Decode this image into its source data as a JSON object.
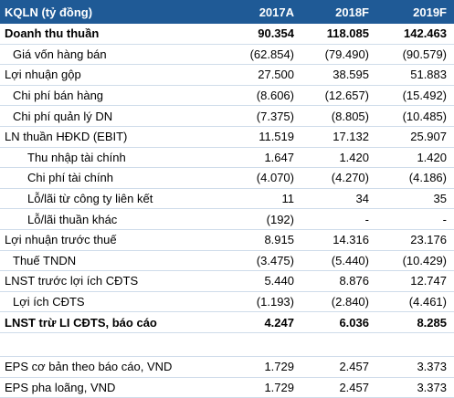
{
  "header": {
    "label": "KQLN (tỷ đồng)",
    "cols": [
      "2017A",
      "2018F",
      "2019F"
    ]
  },
  "rows": [
    {
      "label": "Doanh thu thuần",
      "v": [
        "90.354",
        "118.085",
        "142.463"
      ],
      "bold": true,
      "indent": 0
    },
    {
      "label": "Giá vốn hàng bán",
      "v": [
        "(62.854)",
        "(79.490)",
        "(90.579)"
      ],
      "bold": false,
      "indent": 1
    },
    {
      "label": "Lợi nhuận gộp",
      "v": [
        "27.500",
        "38.595",
        "51.883"
      ],
      "bold": false,
      "indent": 0
    },
    {
      "label": "Chi phí bán hàng",
      "v": [
        "(8.606)",
        "(12.657)",
        "(15.492)"
      ],
      "bold": false,
      "indent": 1
    },
    {
      "label": "Chi phí quản lý DN",
      "v": [
        "(7.375)",
        "(8.805)",
        "(10.485)"
      ],
      "bold": false,
      "indent": 1
    },
    {
      "label": "LN thuần HĐKD (EBIT)",
      "v": [
        "11.519",
        "17.132",
        "25.907"
      ],
      "bold": false,
      "indent": 0
    },
    {
      "label": "Thu nhập tài chính",
      "v": [
        "1.647",
        "1.420",
        "1.420"
      ],
      "bold": false,
      "indent": 2
    },
    {
      "label": "Chi phí tài chính",
      "v": [
        "(4.070)",
        "(4.270)",
        "(4.186)"
      ],
      "bold": false,
      "indent": 2
    },
    {
      "label": "Lỗ/lãi từ công ty liên kết",
      "v": [
        "11",
        "34",
        "35"
      ],
      "bold": false,
      "indent": 2
    },
    {
      "label": "Lỗ/lãi thuần khác",
      "v": [
        "(192)",
        "-",
        "-"
      ],
      "bold": false,
      "indent": 2
    },
    {
      "label": "Lợi nhuận trước thuế",
      "v": [
        "8.915",
        "14.316",
        "23.176"
      ],
      "bold": false,
      "indent": 0
    },
    {
      "label": "Thuế TNDN",
      "v": [
        "(3.475)",
        "(5.440)",
        "(10.429)"
      ],
      "bold": false,
      "indent": 1
    },
    {
      "label": "LNST trước lợi ích CĐTS",
      "v": [
        "5.440",
        "8.876",
        "12.747"
      ],
      "bold": false,
      "indent": 0
    },
    {
      "label": "Lợi ích CĐTS",
      "v": [
        "(1.193)",
        "(2.840)",
        "(4.461)"
      ],
      "bold": false,
      "indent": 1
    },
    {
      "label": "LNST trừ LI CĐTS, báo cáo",
      "v": [
        "4.247",
        "6.036",
        "8.285"
      ],
      "bold": true,
      "indent": 0
    }
  ],
  "eps_rows": [
    {
      "label": "EPS cơ bản theo báo cáo, VND",
      "v": [
        "1.729",
        "2.457",
        "3.373"
      ]
    },
    {
      "label": "EPS pha loãng, VND",
      "v": [
        "1.729",
        "2.457",
        "3.373"
      ]
    }
  ]
}
